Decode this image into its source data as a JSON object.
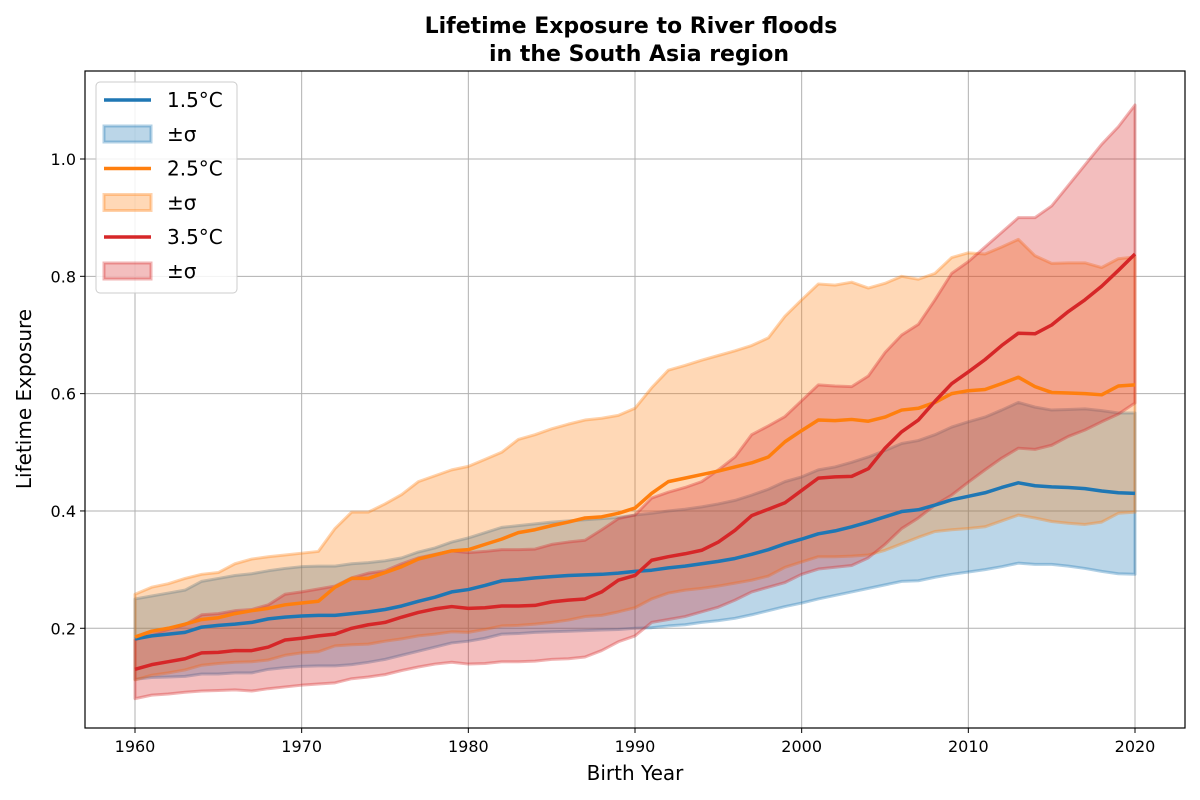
{
  "chart_data": {
    "type": "line",
    "title": "Lifetime Exposure to River floods",
    "subtitle": "in the South Asia region",
    "xlabel": "Birth Year",
    "ylabel": "Lifetime Exposure",
    "xlim": [
      1957,
      2023
    ],
    "ylim": [
      0.03,
      1.15
    ],
    "xticks": [
      "1960",
      "1970",
      "1980",
      "1990",
      "2000",
      "2010",
      "2020"
    ],
    "yticks": [
      "0.2",
      "0.4",
      "0.6",
      "0.8",
      "1.0"
    ],
    "grid": true,
    "legend_position": "top-left",
    "x": [
      1960,
      1961,
      1962,
      1963,
      1964,
      1965,
      1966,
      1967,
      1968,
      1969,
      1970,
      1971,
      1972,
      1973,
      1974,
      1975,
      1976,
      1977,
      1978,
      1979,
      1980,
      1981,
      1982,
      1983,
      1984,
      1985,
      1986,
      1987,
      1988,
      1989,
      1990,
      1991,
      1992,
      1993,
      1994,
      1995,
      1996,
      1997,
      1998,
      1999,
      2000,
      2001,
      2002,
      2003,
      2004,
      2005,
      2006,
      2007,
      2008,
      2009,
      2010,
      2011,
      2012,
      2013,
      2014,
      2015,
      2016,
      2017,
      2018,
      2019,
      2020
    ],
    "series": [
      {
        "name": "1.5°C",
        "band_label": "±σ",
        "color": "#1f77b4",
        "band_fill": "#1f77b4",
        "values": [
          0.182,
          0.187,
          0.19,
          0.193,
          0.202,
          0.205,
          0.207,
          0.21,
          0.216,
          0.219,
          0.221,
          0.222,
          0.222,
          0.225,
          0.228,
          0.232,
          0.238,
          0.246,
          0.253,
          0.262,
          0.266,
          0.273,
          0.281,
          0.283,
          0.286,
          0.288,
          0.29,
          0.291,
          0.292,
          0.294,
          0.297,
          0.299,
          0.303,
          0.306,
          0.31,
          0.314,
          0.319,
          0.326,
          0.334,
          0.344,
          0.352,
          0.361,
          0.366,
          0.373,
          0.381,
          0.39,
          0.399,
          0.402,
          0.41,
          0.419,
          0.425,
          0.431,
          0.44,
          0.448,
          0.443,
          0.441,
          0.44,
          0.438,
          0.434,
          0.431,
          0.43
        ],
        "upper": [
          0.25,
          0.255,
          0.26,
          0.265,
          0.28,
          0.285,
          0.29,
          0.293,
          0.298,
          0.302,
          0.305,
          0.306,
          0.306,
          0.31,
          0.312,
          0.315,
          0.32,
          0.33,
          0.337,
          0.347,
          0.354,
          0.363,
          0.372,
          0.375,
          0.378,
          0.381,
          0.383,
          0.385,
          0.387,
          0.389,
          0.393,
          0.396,
          0.4,
          0.403,
          0.407,
          0.412,
          0.418,
          0.427,
          0.437,
          0.45,
          0.458,
          0.47,
          0.475,
          0.483,
          0.492,
          0.503,
          0.515,
          0.52,
          0.53,
          0.543,
          0.552,
          0.56,
          0.572,
          0.585,
          0.577,
          0.572,
          0.573,
          0.574,
          0.571,
          0.567,
          0.567
        ],
        "lower": [
          0.113,
          0.116,
          0.117,
          0.118,
          0.122,
          0.122,
          0.124,
          0.124,
          0.13,
          0.133,
          0.135,
          0.136,
          0.136,
          0.138,
          0.142,
          0.147,
          0.154,
          0.161,
          0.168,
          0.175,
          0.178,
          0.183,
          0.19,
          0.191,
          0.193,
          0.194,
          0.195,
          0.196,
          0.197,
          0.198,
          0.2,
          0.201,
          0.204,
          0.206,
          0.21,
          0.213,
          0.217,
          0.223,
          0.23,
          0.237,
          0.243,
          0.25,
          0.256,
          0.262,
          0.268,
          0.274,
          0.28,
          0.281,
          0.287,
          0.292,
          0.296,
          0.3,
          0.305,
          0.311,
          0.309,
          0.309,
          0.306,
          0.302,
          0.297,
          0.293,
          0.292
        ]
      },
      {
        "name": "2.5°C",
        "band_label": "±σ",
        "color": "#ff7f0e",
        "band_fill": "#ff7f0e",
        "values": [
          0.185,
          0.195,
          0.2,
          0.207,
          0.215,
          0.218,
          0.225,
          0.23,
          0.234,
          0.24,
          0.243,
          0.246,
          0.27,
          0.285,
          0.285,
          0.295,
          0.305,
          0.318,
          0.325,
          0.332,
          0.334,
          0.343,
          0.352,
          0.363,
          0.368,
          0.375,
          0.381,
          0.388,
          0.39,
          0.396,
          0.405,
          0.43,
          0.45,
          0.456,
          0.462,
          0.468,
          0.475,
          0.482,
          0.492,
          0.518,
          0.537,
          0.555,
          0.554,
          0.556,
          0.553,
          0.56,
          0.572,
          0.575,
          0.585,
          0.6,
          0.605,
          0.607,
          0.617,
          0.628,
          0.612,
          0.602,
          0.601,
          0.6,
          0.598,
          0.613,
          0.615
        ],
        "upper": [
          0.258,
          0.27,
          0.276,
          0.285,
          0.292,
          0.295,
          0.31,
          0.318,
          0.322,
          0.325,
          0.328,
          0.331,
          0.37,
          0.398,
          0.398,
          0.412,
          0.428,
          0.45,
          0.46,
          0.47,
          0.476,
          0.488,
          0.5,
          0.522,
          0.53,
          0.54,
          0.548,
          0.555,
          0.558,
          0.563,
          0.575,
          0.61,
          0.64,
          0.648,
          0.657,
          0.665,
          0.673,
          0.682,
          0.695,
          0.732,
          0.76,
          0.787,
          0.785,
          0.79,
          0.78,
          0.788,
          0.8,
          0.795,
          0.805,
          0.832,
          0.84,
          0.838,
          0.85,
          0.863,
          0.835,
          0.822,
          0.823,
          0.823,
          0.815,
          0.83,
          0.833
        ],
        "lower": [
          0.112,
          0.12,
          0.124,
          0.129,
          0.137,
          0.14,
          0.142,
          0.143,
          0.146,
          0.154,
          0.158,
          0.16,
          0.17,
          0.172,
          0.173,
          0.178,
          0.182,
          0.187,
          0.19,
          0.194,
          0.193,
          0.198,
          0.204,
          0.205,
          0.207,
          0.21,
          0.214,
          0.22,
          0.222,
          0.228,
          0.235,
          0.25,
          0.26,
          0.265,
          0.268,
          0.272,
          0.277,
          0.282,
          0.289,
          0.304,
          0.313,
          0.322,
          0.322,
          0.323,
          0.325,
          0.333,
          0.344,
          0.355,
          0.365,
          0.368,
          0.37,
          0.373,
          0.383,
          0.393,
          0.388,
          0.382,
          0.379,
          0.377,
          0.381,
          0.396,
          0.398
        ]
      },
      {
        "name": "3.5°C",
        "band_label": "±σ",
        "color": "#d62728",
        "band_fill": "#d62728",
        "values": [
          0.13,
          0.138,
          0.143,
          0.148,
          0.158,
          0.159,
          0.162,
          0.162,
          0.168,
          0.18,
          0.183,
          0.187,
          0.19,
          0.2,
          0.206,
          0.21,
          0.219,
          0.227,
          0.233,
          0.237,
          0.234,
          0.235,
          0.238,
          0.238,
          0.239,
          0.245,
          0.248,
          0.25,
          0.262,
          0.282,
          0.29,
          0.316,
          0.322,
          0.327,
          0.333,
          0.347,
          0.367,
          0.392,
          0.403,
          0.414,
          0.435,
          0.456,
          0.458,
          0.459,
          0.472,
          0.507,
          0.535,
          0.555,
          0.587,
          0.617,
          0.637,
          0.658,
          0.682,
          0.703,
          0.702,
          0.717,
          0.74,
          0.76,
          0.783,
          0.81,
          0.838
        ],
        "upper": [
          0.18,
          0.19,
          0.198,
          0.206,
          0.223,
          0.225,
          0.23,
          0.232,
          0.24,
          0.258,
          0.262,
          0.267,
          0.272,
          0.286,
          0.294,
          0.298,
          0.31,
          0.32,
          0.326,
          0.332,
          0.329,
          0.331,
          0.334,
          0.334,
          0.335,
          0.343,
          0.347,
          0.35,
          0.368,
          0.387,
          0.393,
          0.422,
          0.432,
          0.44,
          0.45,
          0.47,
          0.492,
          0.53,
          0.545,
          0.561,
          0.588,
          0.615,
          0.613,
          0.612,
          0.63,
          0.67,
          0.7,
          0.718,
          0.76,
          0.805,
          0.825,
          0.85,
          0.875,
          0.9,
          0.9,
          0.92,
          0.955,
          0.99,
          1.025,
          1.055,
          1.092
        ],
        "lower": [
          0.08,
          0.086,
          0.088,
          0.091,
          0.093,
          0.094,
          0.095,
          0.093,
          0.097,
          0.1,
          0.103,
          0.105,
          0.107,
          0.114,
          0.117,
          0.121,
          0.128,
          0.134,
          0.139,
          0.142,
          0.139,
          0.14,
          0.143,
          0.143,
          0.144,
          0.147,
          0.148,
          0.151,
          0.162,
          0.177,
          0.187,
          0.21,
          0.215,
          0.22,
          0.228,
          0.236,
          0.248,
          0.262,
          0.27,
          0.278,
          0.292,
          0.301,
          0.304,
          0.307,
          0.32,
          0.343,
          0.37,
          0.388,
          0.41,
          0.427,
          0.449,
          0.47,
          0.49,
          0.507,
          0.505,
          0.512,
          0.527,
          0.538,
          0.552,
          0.565,
          0.584
        ]
      }
    ]
  }
}
